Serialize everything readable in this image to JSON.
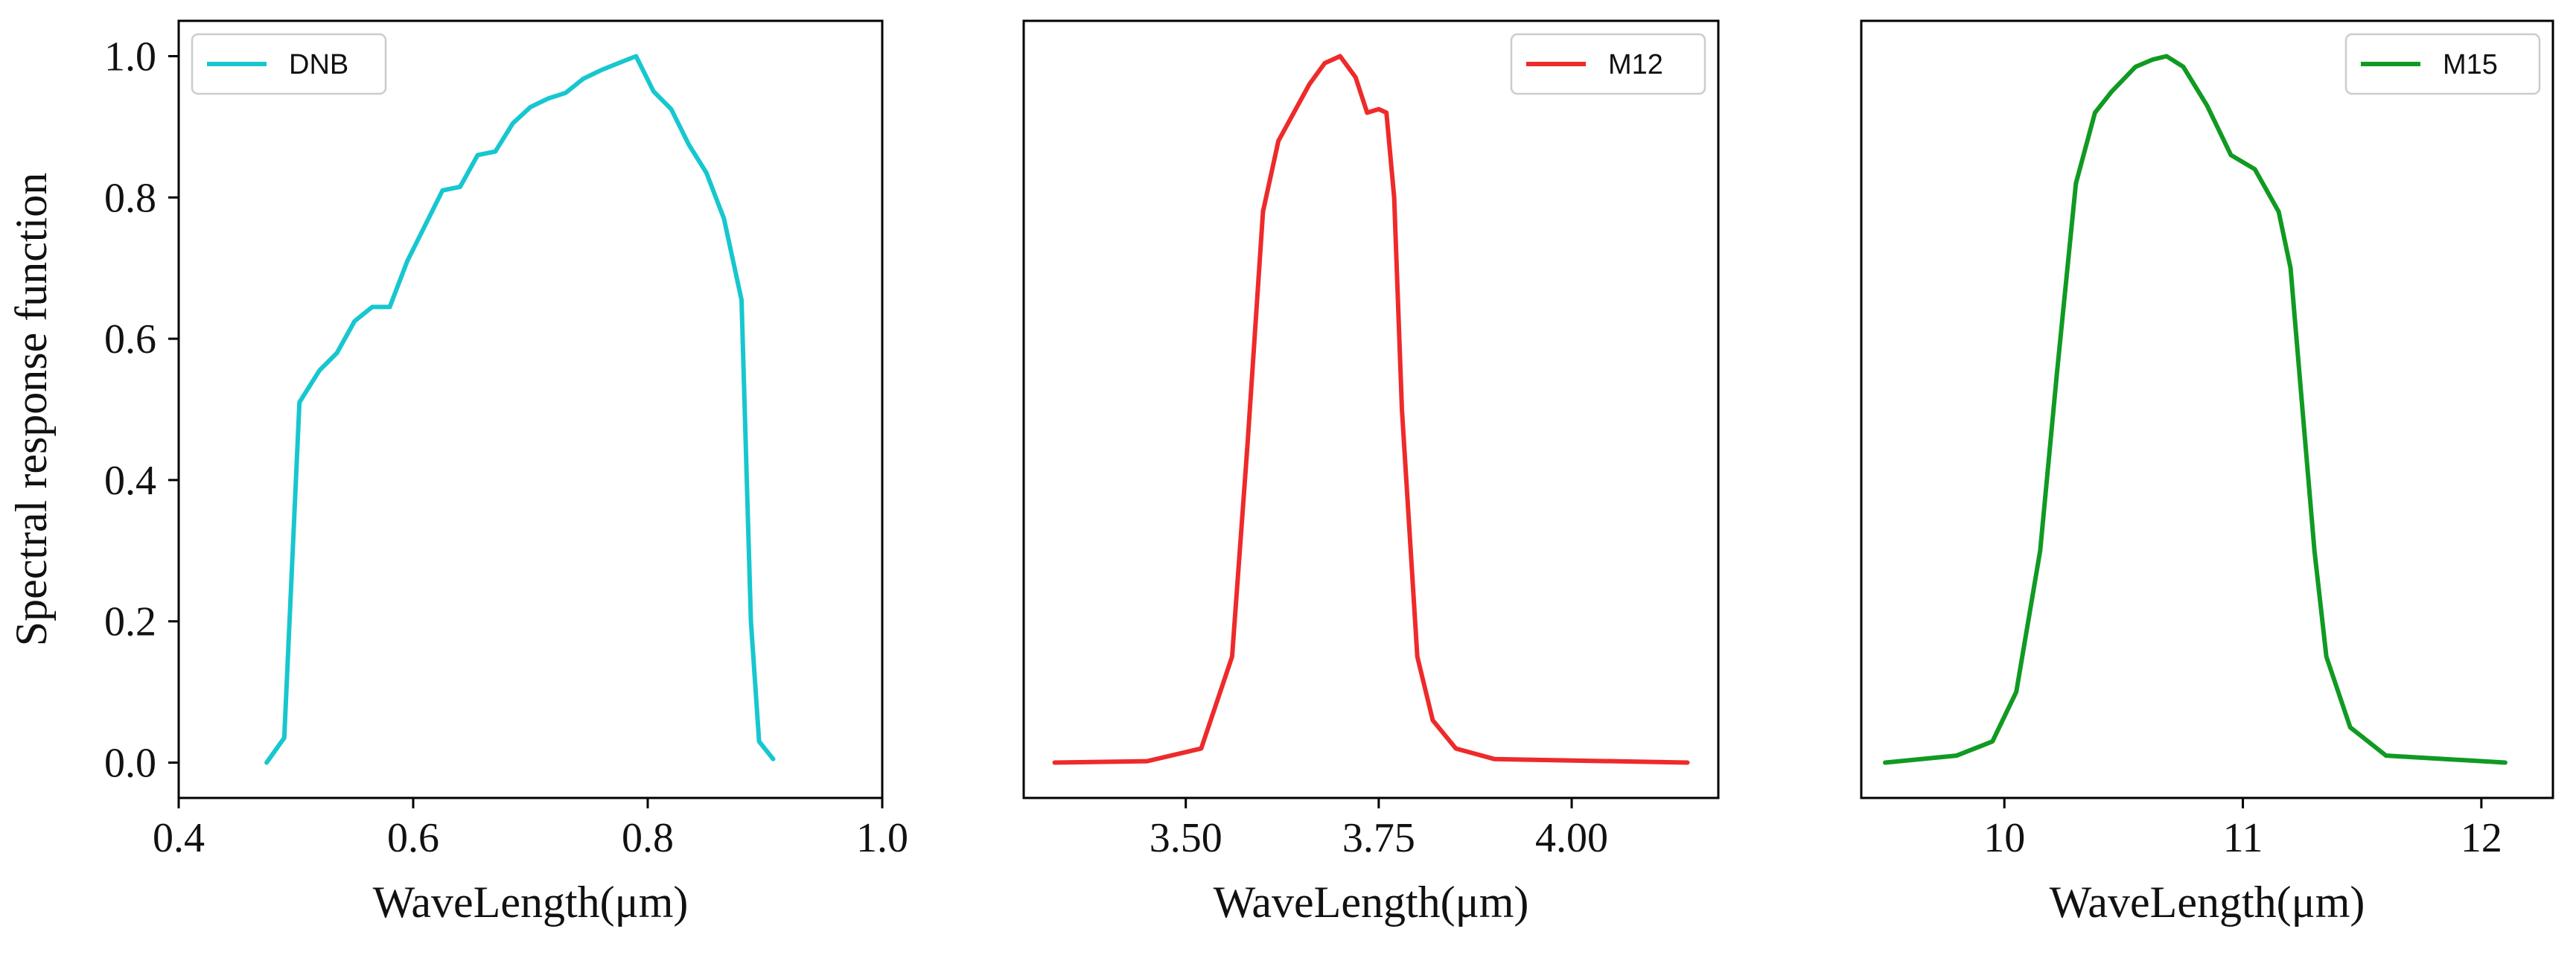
{
  "chart_data": [
    {
      "type": "line",
      "title": "",
      "xlabel": "WaveLength(μm)",
      "ylabel": "Spectral response function",
      "xlim": [
        0.4,
        1.0
      ],
      "ylim": [
        -0.05,
        1.05
      ],
      "xticks": [
        0.4,
        0.6,
        0.8,
        1.0
      ],
      "xtick_labels": [
        "0.4",
        "0.6",
        "0.8",
        "1.0"
      ],
      "yticks": [
        0.0,
        0.2,
        0.4,
        0.6,
        0.8,
        1.0
      ],
      "ytick_labels": [
        "0.0",
        "0.2",
        "0.4",
        "0.6",
        "0.8",
        "1.0"
      ],
      "legend_position": "top-left",
      "grid": false,
      "series": [
        {
          "name": "DNB",
          "color": "#17C7CF",
          "x": [
            0.475,
            0.49,
            0.503,
            0.52,
            0.535,
            0.55,
            0.565,
            0.58,
            0.595,
            0.61,
            0.625,
            0.64,
            0.655,
            0.67,
            0.685,
            0.7,
            0.715,
            0.73,
            0.745,
            0.76,
            0.775,
            0.79,
            0.805,
            0.82,
            0.835,
            0.85,
            0.865,
            0.88,
            0.888,
            0.895,
            0.907
          ],
          "y": [
            0.0,
            0.035,
            0.51,
            0.555,
            0.58,
            0.625,
            0.645,
            0.645,
            0.71,
            0.76,
            0.81,
            0.815,
            0.86,
            0.865,
            0.905,
            0.928,
            0.94,
            0.948,
            0.968,
            0.98,
            0.99,
            1.0,
            0.95,
            0.925,
            0.875,
            0.835,
            0.77,
            0.655,
            0.2,
            0.03,
            0.005
          ]
        }
      ]
    },
    {
      "type": "line",
      "title": "",
      "xlabel": "WaveLength(μm)",
      "ylabel": "",
      "xlim": [
        3.29,
        4.19
      ],
      "ylim": [
        -0.05,
        1.05
      ],
      "xticks": [
        3.5,
        3.75,
        4.0
      ],
      "xtick_labels": [
        "3.50",
        "3.75",
        "4.00"
      ],
      "yticks": [],
      "ytick_labels": [],
      "legend_position": "top-right",
      "grid": false,
      "series": [
        {
          "name": "M12",
          "color": "#EE2A2A",
          "x": [
            3.33,
            3.45,
            3.52,
            3.56,
            3.58,
            3.6,
            3.62,
            3.64,
            3.66,
            3.68,
            3.7,
            3.72,
            3.735,
            3.75,
            3.76,
            3.77,
            3.78,
            3.8,
            3.82,
            3.85,
            3.9,
            4.15
          ],
          "y": [
            0.0,
            0.002,
            0.02,
            0.15,
            0.45,
            0.78,
            0.88,
            0.92,
            0.96,
            0.99,
            1.0,
            0.97,
            0.92,
            0.925,
            0.92,
            0.8,
            0.5,
            0.15,
            0.06,
            0.02,
            0.005,
            0.0
          ]
        }
      ]
    },
    {
      "type": "line",
      "title": "",
      "xlabel": "WaveLength(μm)",
      "ylabel": "",
      "xlim": [
        9.4,
        12.3
      ],
      "ylim": [
        -0.05,
        1.05
      ],
      "xticks": [
        10,
        11,
        12
      ],
      "xtick_labels": [
        "10",
        "11",
        "12"
      ],
      "yticks": [],
      "ytick_labels": [],
      "legend_position": "top-right",
      "grid": false,
      "series": [
        {
          "name": "M15",
          "color": "#109A22",
          "x": [
            9.5,
            9.8,
            9.95,
            10.05,
            10.15,
            10.22,
            10.3,
            10.38,
            10.45,
            10.55,
            10.62,
            10.68,
            10.75,
            10.85,
            10.95,
            11.05,
            11.15,
            11.2,
            11.25,
            11.3,
            11.35,
            11.45,
            11.6,
            12.1
          ],
          "y": [
            0.0,
            0.01,
            0.03,
            0.1,
            0.3,
            0.55,
            0.82,
            0.92,
            0.95,
            0.985,
            0.995,
            1.0,
            0.985,
            0.93,
            0.86,
            0.84,
            0.78,
            0.7,
            0.5,
            0.3,
            0.15,
            0.05,
            0.01,
            0.0
          ]
        }
      ]
    }
  ]
}
